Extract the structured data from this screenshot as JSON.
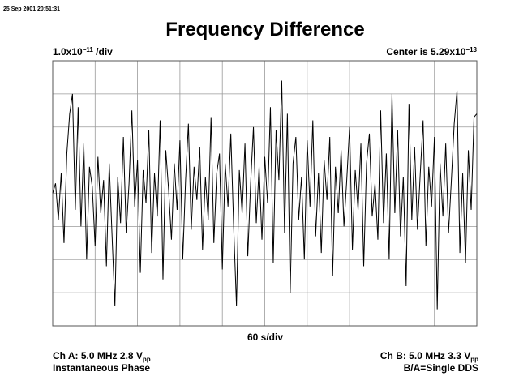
{
  "timestamp": "25 Sep 2001 20:51:31",
  "chart_data": {
    "type": "line",
    "title": "Frequency Difference",
    "y_scale": {
      "text": "1.0x10",
      "sup": "−11",
      "rest": " /div"
    },
    "center": {
      "text": "Center is 5.29x10",
      "sup": "−13"
    },
    "x_scale": "60 s/div",
    "xlim": [
      0,
      600
    ],
    "xticks": [
      0,
      60,
      120,
      180,
      240,
      300,
      360,
      420,
      480,
      540,
      600
    ],
    "ylim": [
      -4,
      4
    ],
    "yticks": [
      -4,
      -3,
      -2,
      -1,
      0,
      1,
      2,
      3,
      4
    ],
    "grid": true,
    "color": "#000000",
    "x": [
      0,
      4,
      8,
      12,
      16,
      20,
      24,
      28,
      32,
      36,
      40,
      44,
      48,
      52,
      56,
      60,
      64,
      68,
      72,
      76,
      80,
      84,
      88,
      92,
      96,
      100,
      104,
      108,
      112,
      116,
      120,
      124,
      128,
      132,
      136,
      140,
      144,
      148,
      152,
      156,
      160,
      164,
      168,
      172,
      176,
      180,
      184,
      188,
      192,
      196,
      200,
      204,
      208,
      212,
      216,
      220,
      224,
      228,
      232,
      236,
      240,
      244,
      248,
      252,
      256,
      260,
      264,
      268,
      272,
      276,
      280,
      284,
      288,
      292,
      296,
      300,
      304,
      308,
      312,
      316,
      320,
      324,
      328,
      332,
      336,
      340,
      344,
      348,
      352,
      356,
      360,
      364,
      368,
      372,
      376,
      380,
      384,
      388,
      392,
      396,
      400,
      404,
      408,
      412,
      416,
      420,
      424,
      428,
      432,
      436,
      440,
      444,
      448,
      452,
      456,
      460,
      464,
      468,
      472,
      476,
      480,
      484,
      488,
      492,
      496,
      500,
      504,
      508,
      512,
      516,
      520,
      524,
      528,
      532,
      536,
      540,
      544,
      548,
      552,
      556,
      560,
      564,
      568,
      572,
      576,
      580,
      584,
      588,
      592,
      596,
      600
    ],
    "values": [
      0.0,
      0.3,
      -0.8,
      0.6,
      -1.5,
      1.2,
      2.4,
      3.0,
      -0.5,
      2.6,
      -1.0,
      1.5,
      -2.0,
      0.8,
      0.2,
      -1.6,
      1.1,
      -0.6,
      0.4,
      -2.2,
      0.9,
      -1.3,
      -3.4,
      0.5,
      -0.9,
      1.7,
      -1.2,
      0.3,
      2.5,
      -0.4,
      1.0,
      -2.4,
      0.7,
      -0.3,
      1.9,
      -1.8,
      0.6,
      -0.7,
      2.2,
      -2.6,
      1.3,
      0.1,
      -1.4,
      0.9,
      -0.5,
      1.6,
      -2.0,
      0.4,
      2.1,
      -1.1,
      0.8,
      -0.2,
      1.4,
      -1.7,
      0.5,
      -0.8,
      2.3,
      -1.5,
      0.6,
      1.2,
      -2.3,
      0.9,
      -0.4,
      1.8,
      -1.0,
      -3.4,
      0.7,
      -0.6,
      1.5,
      -1.9,
      0.3,
      2.0,
      -0.9,
      0.8,
      -1.4,
      1.1,
      -0.3,
      2.6,
      -2.1,
      1.9,
      0.4,
      3.4,
      -1.2,
      2.4,
      -3.0,
      0.9,
      1.7,
      -0.8,
      0.5,
      -2.0,
      1.6,
      -0.4,
      2.2,
      -1.3,
      0.6,
      -1.8,
      1.0,
      -0.2,
      1.7,
      -2.5,
      0.8,
      -0.6,
      1.3,
      -1.0,
      0.4,
      2.0,
      -1.7,
      0.7,
      -0.5,
      1.5,
      -2.2,
      0.9,
      1.8,
      -0.7,
      0.3,
      -1.4,
      2.5,
      -0.9,
      1.2,
      -2.0,
      3.0,
      -0.6,
      1.9,
      -1.3,
      0.5,
      -2.8,
      2.7,
      -0.8,
      1.4,
      -1.1,
      0.6,
      2.2,
      -1.6,
      0.8,
      -0.4,
      1.7,
      -3.5,
      0.9,
      -0.7,
      1.5,
      -1.2,
      0.4,
      2.1,
      3.1,
      -1.8,
      0.6,
      -2.1,
      1.3,
      -0.5,
      2.3,
      2.4
    ]
  },
  "channel_a": {
    "text": "Ch A: 5.0 MHz 2.8 V",
    "sub": "pp",
    "mode": "Instantaneous Phase"
  },
  "channel_b": {
    "text": "Ch B: 5.0 MHz 3.3 V",
    "sub": "pp",
    "mode": "B/A=Single DDS"
  }
}
